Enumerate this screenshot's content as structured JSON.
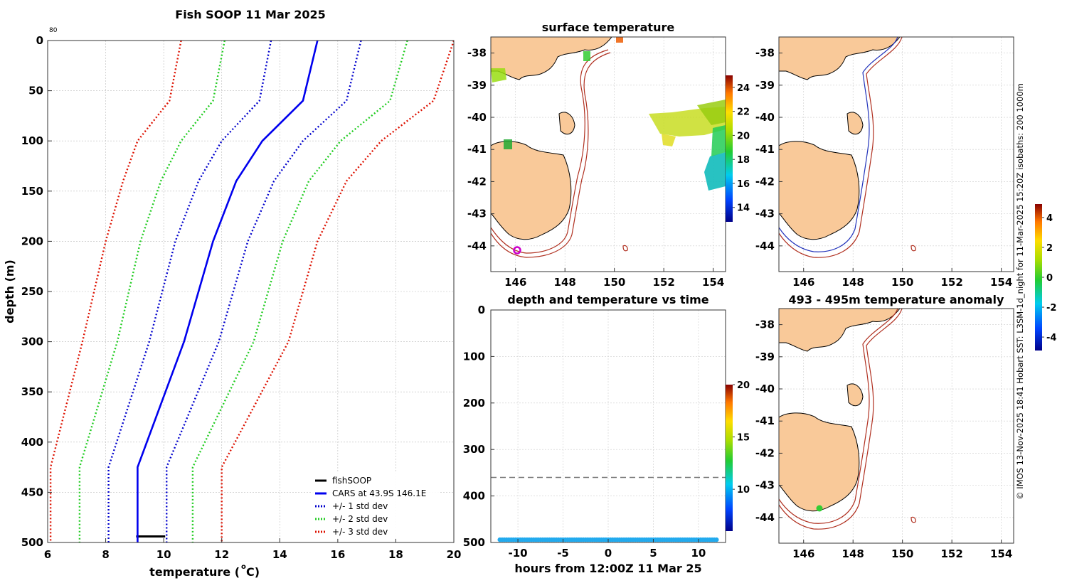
{
  "profile": {
    "title": "Fish SOOP 11 Mar 2025",
    "corner_label": "80",
    "xlabel": "temperature (",
    "xlabel_sup": "o",
    "xlabel_unit": "C)",
    "ylabel": "depth (m)",
    "xticks": [
      "6",
      "8",
      "10",
      "12",
      "14",
      "16",
      "18",
      "20"
    ],
    "yticks": [
      "0",
      "50",
      "100",
      "150",
      "200",
      "250",
      "300",
      "350",
      "400",
      "450",
      "500"
    ],
    "legend": [
      "fishSOOP",
      "CARS at 43.9S 146.1E",
      "+/- 1 std dev",
      "+/- 2 std dev",
      "+/- 3 std dev"
    ]
  },
  "sst_map": {
    "title": "surface temperature",
    "yticks": [
      "-38",
      "-39",
      "-40",
      "-41",
      "-42",
      "-43",
      "-44"
    ],
    "xticks": [
      "146",
      "148",
      "150",
      "152",
      "154"
    ],
    "colorbar_ticks": [
      "24",
      "22",
      "20",
      "18",
      "16",
      "14"
    ]
  },
  "time_plot": {
    "title": "depth and temperature vs time",
    "xlabel": "hours from 12:00Z 11 Mar 25",
    "yticks": [
      "0",
      "100",
      "200",
      "300",
      "400",
      "500"
    ],
    "xticks": [
      "-10",
      "-5",
      "0",
      "5",
      "10"
    ],
    "colorbar_ticks": [
      "20",
      "15",
      "10"
    ]
  },
  "bathy_map": {
    "yticks": [
      "-38",
      "-39",
      "-40",
      "-41",
      "-42",
      "-43",
      "-44"
    ],
    "xticks": [
      "146",
      "148",
      "150",
      "152",
      "154"
    ]
  },
  "anomaly_map": {
    "title": "493 - 495m temperature anomaly",
    "yticks": [
      "-38",
      "-39",
      "-40",
      "-41",
      "-42",
      "-43",
      "-44"
    ],
    "xticks": [
      "146",
      "148",
      "150",
      "152",
      "154"
    ],
    "colorbar_ticks": [
      "4",
      "2",
      "0",
      "-2",
      "-4"
    ]
  },
  "side_note": "© IMOS 13-Nov-2025 18:41 Hobart SST: L3SM-1d_night for 11-Mar-2025 15:20Z isobaths: 200  1000m",
  "colors": {
    "fishsoop": "#000000",
    "cars": "#0000ee",
    "std1": "#0000cc",
    "std2": "#22cc22",
    "std3": "#dd1100",
    "land": "#f9c999",
    "isobath_200": "#2233bb",
    "isobath_1000": "#b03020"
  },
  "chart_data": [
    {
      "type": "line",
      "title": "Fish SOOP 11 Mar 2025",
      "xlabel": "temperature (oC)",
      "ylabel": "depth (m)",
      "xlim": [
        6,
        20
      ],
      "ylim": [
        500,
        0
      ],
      "depth": [
        0,
        60,
        100,
        140,
        200,
        300,
        425,
        500
      ],
      "series": [
        {
          "name": "fishSOOP",
          "x": [
            9.05,
            10.05
          ],
          "y": [
            494,
            494
          ]
        },
        {
          "name": "CARS at 43.9S 146.1E",
          "values": [
            15.3,
            14.8,
            13.4,
            12.5,
            11.7,
            10.7,
            9.1,
            9.1
          ]
        },
        {
          "name": "+/- 1 std dev (upper)",
          "values": [
            16.8,
            16.3,
            14.8,
            13.8,
            12.9,
            11.9,
            10.1,
            10.1
          ]
        },
        {
          "name": "+/- 1 std dev (lower)",
          "values": [
            13.7,
            13.3,
            12.0,
            11.2,
            10.4,
            9.5,
            8.1,
            8.1
          ]
        },
        {
          "name": "+/- 2 std dev (upper)",
          "values": [
            18.4,
            17.8,
            16.1,
            15.0,
            14.1,
            13.1,
            11.0,
            11.0
          ]
        },
        {
          "name": "+/- 2 std dev (lower)",
          "values": [
            12.1,
            11.7,
            10.6,
            9.9,
            9.2,
            8.4,
            7.1,
            7.1
          ]
        },
        {
          "name": "+/- 3 std dev (upper)",
          "values": [
            20.0,
            19.3,
            17.5,
            16.3,
            15.3,
            14.3,
            12.0,
            12.0
          ]
        },
        {
          "name": "+/- 3 std dev (lower)",
          "values": [
            10.6,
            10.2,
            9.1,
            8.6,
            8.0,
            7.2,
            6.1,
            6.1
          ]
        }
      ]
    },
    {
      "type": "scatter",
      "title": "depth and temperature vs time",
      "xlabel": "hours from 12:00Z 11 Mar 25",
      "ylabel": "",
      "xlim": [
        -13,
        13
      ],
      "ylim": [
        500,
        0
      ],
      "reference_depth": 360,
      "points": {
        "x_start": -12,
        "x_end": 12,
        "depth": 494,
        "temperature": 9.5
      }
    }
  ]
}
